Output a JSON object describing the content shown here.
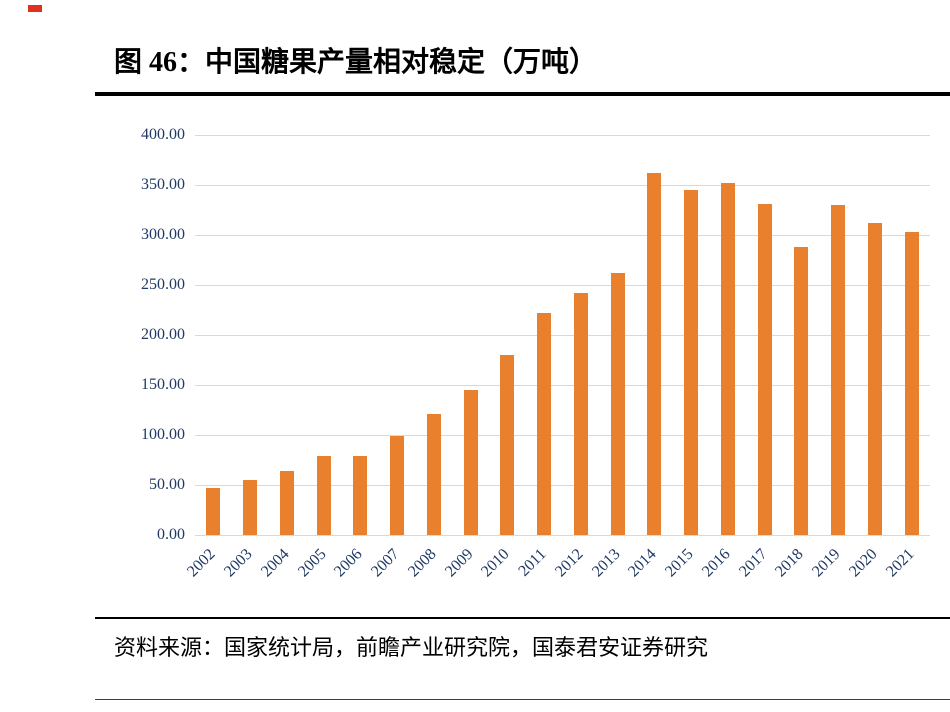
{
  "figure": {
    "title": "图 46：中国糖果产量相对稳定（万吨）",
    "source": "资料来源：国家统计局，前瞻产业研究院，国泰君安证券研究"
  },
  "chart_data": {
    "type": "bar",
    "title": "图 46：中国糖果产量相对稳定（万吨）",
    "xlabel": "",
    "ylabel": "",
    "categories": [
      "2002",
      "2003",
      "2004",
      "2005",
      "2006",
      "2007",
      "2008",
      "2009",
      "2010",
      "2011",
      "2012",
      "2013",
      "2014",
      "2015",
      "2016",
      "2017",
      "2018",
      "2019",
      "2020",
      "2021"
    ],
    "values": [
      47,
      55,
      64,
      79,
      79,
      99,
      121,
      145,
      180,
      222,
      242,
      262,
      362,
      345,
      352,
      331,
      288,
      330,
      312,
      303
    ],
    "ylim": [
      0,
      400
    ],
    "ytick_step": 50,
    "ytick_format": "two-decimals",
    "grid": true,
    "legend": false,
    "bar_color": "#E8802D"
  },
  "colors": {
    "bar": "#E8802D",
    "axis_text": "#1F3864",
    "gridline": "#D9D9D9",
    "title_text": "#000000",
    "rule": "#000000",
    "accent_red": "#E0301E"
  }
}
